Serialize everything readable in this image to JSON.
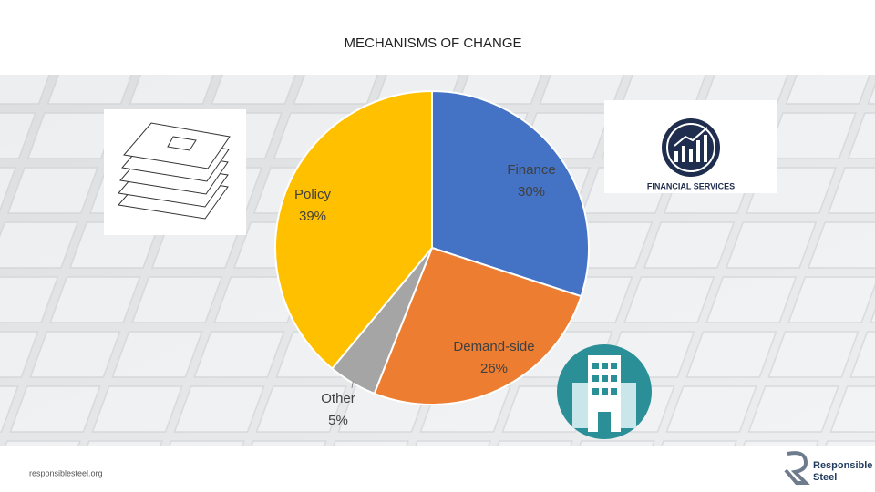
{
  "chart_data": {
    "type": "pie",
    "title": "MECHANISMS OF CHANGE",
    "categories": [
      "Finance",
      "Demand-side",
      "Other",
      "Policy"
    ],
    "values": [
      30,
      26,
      5,
      39
    ],
    "value_labels": [
      "30%",
      "26%",
      "5%",
      "39%"
    ],
    "colors": [
      "#4472c4",
      "#ed7d31",
      "#a5a5a5",
      "#ffc000"
    ]
  },
  "footer": {
    "url": "responsiblesteel.org",
    "logo_line1": "Responsible",
    "logo_line2": "Steel"
  },
  "images": {
    "financial": "FINANCIAL SERVICES"
  }
}
